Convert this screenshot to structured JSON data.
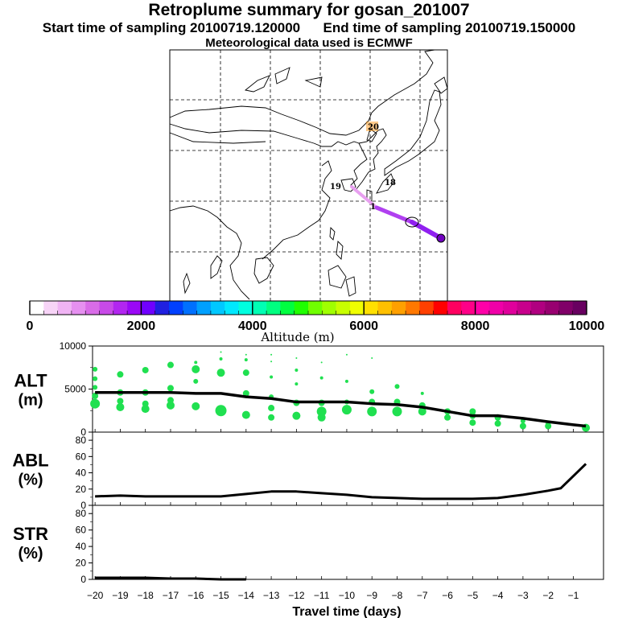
{
  "header": {
    "title": "Retroplume summary for gosan_201007",
    "start_label": "Start time of sampling 20100719.120000",
    "end_label": "End time of sampling 20100719.150000",
    "met_label": "Meteorological data used is ECMWF"
  },
  "map": {
    "day_labels": [
      "20",
      "19",
      "18",
      "1"
    ],
    "trajectory_colors": [
      "#e8a0f0",
      "#b040f0",
      "#9020f0"
    ]
  },
  "colorbar": {
    "tick_labels": [
      "0",
      "2000",
      "4000",
      "6000",
      "8000",
      "10000"
    ],
    "axis_label": "Altitude (m)",
    "colors": [
      "#ffffff",
      "#f7d4f7",
      "#f0b4f4",
      "#e690f0",
      "#d96ce8",
      "#c84ae8",
      "#b226f0",
      "#9a08f6",
      "#7000ff",
      "#2020e0",
      "#0040ff",
      "#0070ff",
      "#00a0ff",
      "#00c8ff",
      "#00e8ff",
      "#00ffe0",
      "#00ffb4",
      "#00ff80",
      "#00ff40",
      "#20ff00",
      "#70ff00",
      "#a0ff00",
      "#c8ff00",
      "#f0ff00",
      "#ffe000",
      "#ffc000",
      "#ffa000",
      "#ff7800",
      "#ff4000",
      "#ff0000",
      "#ff0060",
      "#ff0088",
      "#ff00a8",
      "#f000a8",
      "#e0009c",
      "#c8008c",
      "#b00080",
      "#980070",
      "#800068",
      "#680060"
    ]
  },
  "chart_data": [
    {
      "type": "scatter",
      "name": "ALT",
      "ylabel": "ALT",
      "yunit": "(m)",
      "ylim": [
        0,
        10000
      ],
      "yticks": [
        "10000",
        "5000",
        "0"
      ],
      "xlim": [
        -20,
        0
      ],
      "line_x": [
        -20,
        -19,
        -18,
        -17,
        -16,
        -15,
        -14,
        -13,
        -12,
        -11,
        -10,
        -9,
        -8,
        -7,
        -6,
        -5,
        -4,
        -3,
        -2,
        -1,
        -0.5
      ],
      "line_y": [
        4600,
        4600,
        4600,
        4600,
        4500,
        4500,
        4100,
        3900,
        3500,
        3500,
        3500,
        3300,
        3200,
        2900,
        2400,
        1900,
        1900,
        1600,
        1200,
        850,
        700
      ],
      "points": [
        {
          "x": -20,
          "y": 3300,
          "s": 6
        },
        {
          "x": -20,
          "y": 4200,
          "s": 4
        },
        {
          "x": -20,
          "y": 5200,
          "s": 3
        },
        {
          "x": -20,
          "y": 6200,
          "s": 3
        },
        {
          "x": -20,
          "y": 7300,
          "s": 3
        },
        {
          "x": -19,
          "y": 2900,
          "s": 5
        },
        {
          "x": -19,
          "y": 3600,
          "s": 4
        },
        {
          "x": -19,
          "y": 4600,
          "s": 4
        },
        {
          "x": -19,
          "y": 6700,
          "s": 4
        },
        {
          "x": -18,
          "y": 2700,
          "s": 5
        },
        {
          "x": -18,
          "y": 3300,
          "s": 4
        },
        {
          "x": -18,
          "y": 4600,
          "s": 4
        },
        {
          "x": -18,
          "y": 7200,
          "s": 4
        },
        {
          "x": -17,
          "y": 3100,
          "s": 5
        },
        {
          "x": -17,
          "y": 3700,
          "s": 4
        },
        {
          "x": -17,
          "y": 5100,
          "s": 4
        },
        {
          "x": -17,
          "y": 7800,
          "s": 4
        },
        {
          "x": -16,
          "y": 3000,
          "s": 5
        },
        {
          "x": -16,
          "y": 5900,
          "s": 3
        },
        {
          "x": -16,
          "y": 7300,
          "s": 5
        },
        {
          "x": -16,
          "y": 8100,
          "s": 2
        },
        {
          "x": -15,
          "y": 2500,
          "s": 7
        },
        {
          "x": -15,
          "y": 6900,
          "s": 5
        },
        {
          "x": -15,
          "y": 8500,
          "s": 2
        },
        {
          "x": -15,
          "y": 9300,
          "s": 1
        },
        {
          "x": -14,
          "y": 2000,
          "s": 5
        },
        {
          "x": -14,
          "y": 4500,
          "s": 4
        },
        {
          "x": -14,
          "y": 6900,
          "s": 4
        },
        {
          "x": -14,
          "y": 8400,
          "s": 2
        },
        {
          "x": -14,
          "y": 9000,
          "s": 1
        },
        {
          "x": -13,
          "y": 1700,
          "s": 4
        },
        {
          "x": -13,
          "y": 2800,
          "s": 4
        },
        {
          "x": -13,
          "y": 4100,
          "s": 3
        },
        {
          "x": -13,
          "y": 6400,
          "s": 2
        },
        {
          "x": -13,
          "y": 8200,
          "s": 1
        },
        {
          "x": -13,
          "y": 9000,
          "s": 1
        },
        {
          "x": -12,
          "y": 1900,
          "s": 5
        },
        {
          "x": -12,
          "y": 3400,
          "s": 4
        },
        {
          "x": -12,
          "y": 5600,
          "s": 2
        },
        {
          "x": -12,
          "y": 7200,
          "s": 2
        },
        {
          "x": -12,
          "y": 8600,
          "s": 1
        },
        {
          "x": -11,
          "y": 1700,
          "s": 5
        },
        {
          "x": -11,
          "y": 2400,
          "s": 6
        },
        {
          "x": -11,
          "y": 3400,
          "s": 4
        },
        {
          "x": -11,
          "y": 6300,
          "s": 2
        },
        {
          "x": -11,
          "y": 8100,
          "s": 1
        },
        {
          "x": -10,
          "y": 2600,
          "s": 6
        },
        {
          "x": -10,
          "y": 3500,
          "s": 3
        },
        {
          "x": -10,
          "y": 5900,
          "s": 2
        },
        {
          "x": -10,
          "y": 9000,
          "s": 1
        },
        {
          "x": -9,
          "y": 2400,
          "s": 6
        },
        {
          "x": -9,
          "y": 3500,
          "s": 4
        },
        {
          "x": -9,
          "y": 4700,
          "s": 3
        },
        {
          "x": -9,
          "y": 8600,
          "s": 1
        },
        {
          "x": -8,
          "y": 2400,
          "s": 6
        },
        {
          "x": -8,
          "y": 3500,
          "s": 4
        },
        {
          "x": -8,
          "y": 5300,
          "s": 3
        },
        {
          "x": -7,
          "y": 2400,
          "s": 5
        },
        {
          "x": -7,
          "y": 3100,
          "s": 4
        },
        {
          "x": -7,
          "y": 4500,
          "s": 2
        },
        {
          "x": -6,
          "y": 1700,
          "s": 4
        },
        {
          "x": -6,
          "y": 2400,
          "s": 4
        },
        {
          "x": -5,
          "y": 1100,
          "s": 4
        },
        {
          "x": -5,
          "y": 1900,
          "s": 4
        },
        {
          "x": -5,
          "y": 2400,
          "s": 4
        },
        {
          "x": -4,
          "y": 1000,
          "s": 4
        },
        {
          "x": -4,
          "y": 1700,
          "s": 4
        },
        {
          "x": -3,
          "y": 700,
          "s": 4
        },
        {
          "x": -3,
          "y": 1300,
          "s": 3
        },
        {
          "x": -2,
          "y": 700,
          "s": 4
        },
        {
          "x": -2,
          "y": 1000,
          "s": 3
        },
        {
          "x": -0.5,
          "y": 500,
          "s": 5
        }
      ]
    },
    {
      "type": "line",
      "name": "ABL",
      "ylabel": "ABL",
      "yunit": "(%)",
      "ylim": [
        0,
        90
      ],
      "yticks": [
        "80",
        "60",
        "40",
        "20",
        "0"
      ],
      "x": [
        -20,
        -19,
        -18,
        -17,
        -16,
        -15,
        -14,
        -13,
        -12,
        -11,
        -10,
        -9,
        -8,
        -7,
        -6,
        -5,
        -4,
        -3,
        -2,
        -1.5,
        -0.5
      ],
      "y": [
        11,
        12,
        11,
        11,
        11,
        11,
        14,
        17,
        17,
        15,
        13,
        10,
        9,
        8,
        8,
        8,
        9,
        13,
        18,
        21,
        51
      ]
    },
    {
      "type": "line",
      "name": "STR",
      "ylabel": "STR",
      "yunit": "(%)",
      "ylim": [
        0,
        90
      ],
      "yticks": [
        "80",
        "60",
        "40",
        "20",
        "0"
      ],
      "x": [
        -20,
        -19,
        -18,
        -17,
        -16,
        -15,
        -14
      ],
      "y": [
        2,
        2,
        2,
        1,
        1,
        0,
        0
      ]
    }
  ],
  "xaxis": {
    "tick_labels": [
      "−20",
      "−19",
      "−18",
      "−17",
      "−16",
      "−15",
      "−14",
      "−13",
      "−12",
      "−11",
      "−10",
      "−9",
      "−8",
      "−7",
      "−6",
      "−5",
      "−4",
      "−3",
      "−2",
      "−1"
    ],
    "label": "Travel time (days)"
  }
}
